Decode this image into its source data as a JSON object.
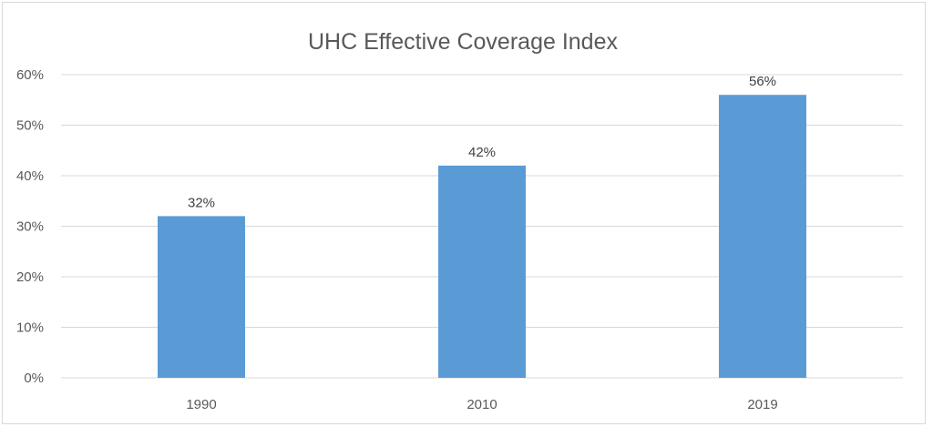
{
  "chart_data": {
    "type": "bar",
    "title": "UHC Effective Coverage Index",
    "xlabel": "",
    "ylabel": "",
    "categories": [
      "1990",
      "2010",
      "2019"
    ],
    "values": [
      32,
      42,
      56
    ],
    "data_labels": [
      "32%",
      "42%",
      "56%"
    ],
    "ylim": [
      0,
      60
    ],
    "y_ticks": [
      0,
      10,
      20,
      30,
      40,
      50,
      60
    ],
    "y_tick_labels": [
      "0%",
      "10%",
      "20%",
      "30%",
      "40%",
      "50%",
      "60%"
    ],
    "grid": true,
    "legend": "none",
    "bar_color": "#5b9bd5",
    "grid_color": "#d9d9d9",
    "text_color": "#595959"
  }
}
